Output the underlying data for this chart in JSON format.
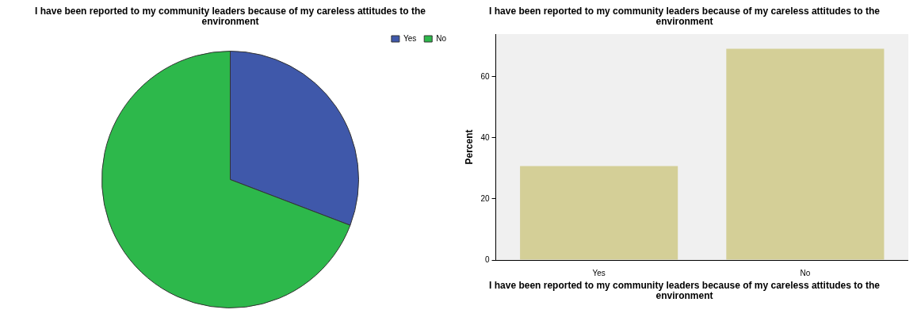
{
  "chart_data": [
    {
      "type": "pie",
      "title": "I have been reported to my community leaders because of my careless attitudes to the environment",
      "categories": [
        "Yes",
        "No"
      ],
      "values": [
        30.8,
        69.2
      ],
      "colors": [
        "#3f58aa",
        "#2db84b"
      ],
      "legend": "top right"
    },
    {
      "type": "bar",
      "title": "I have been reported to my community leaders because of my careless attitudes to the environment",
      "xlabel": "I have been reported to my community leaders because of my careless attitudes to the environment",
      "ylabel": "Percent",
      "categories": [
        "Yes",
        "No"
      ],
      "values": [
        30.8,
        69.2
      ],
      "color": "#d4cf97",
      "ylim": [
        0,
        74
      ],
      "yticks": [
        0,
        20,
        40,
        60
      ],
      "grid": false,
      "legend": false
    }
  ]
}
